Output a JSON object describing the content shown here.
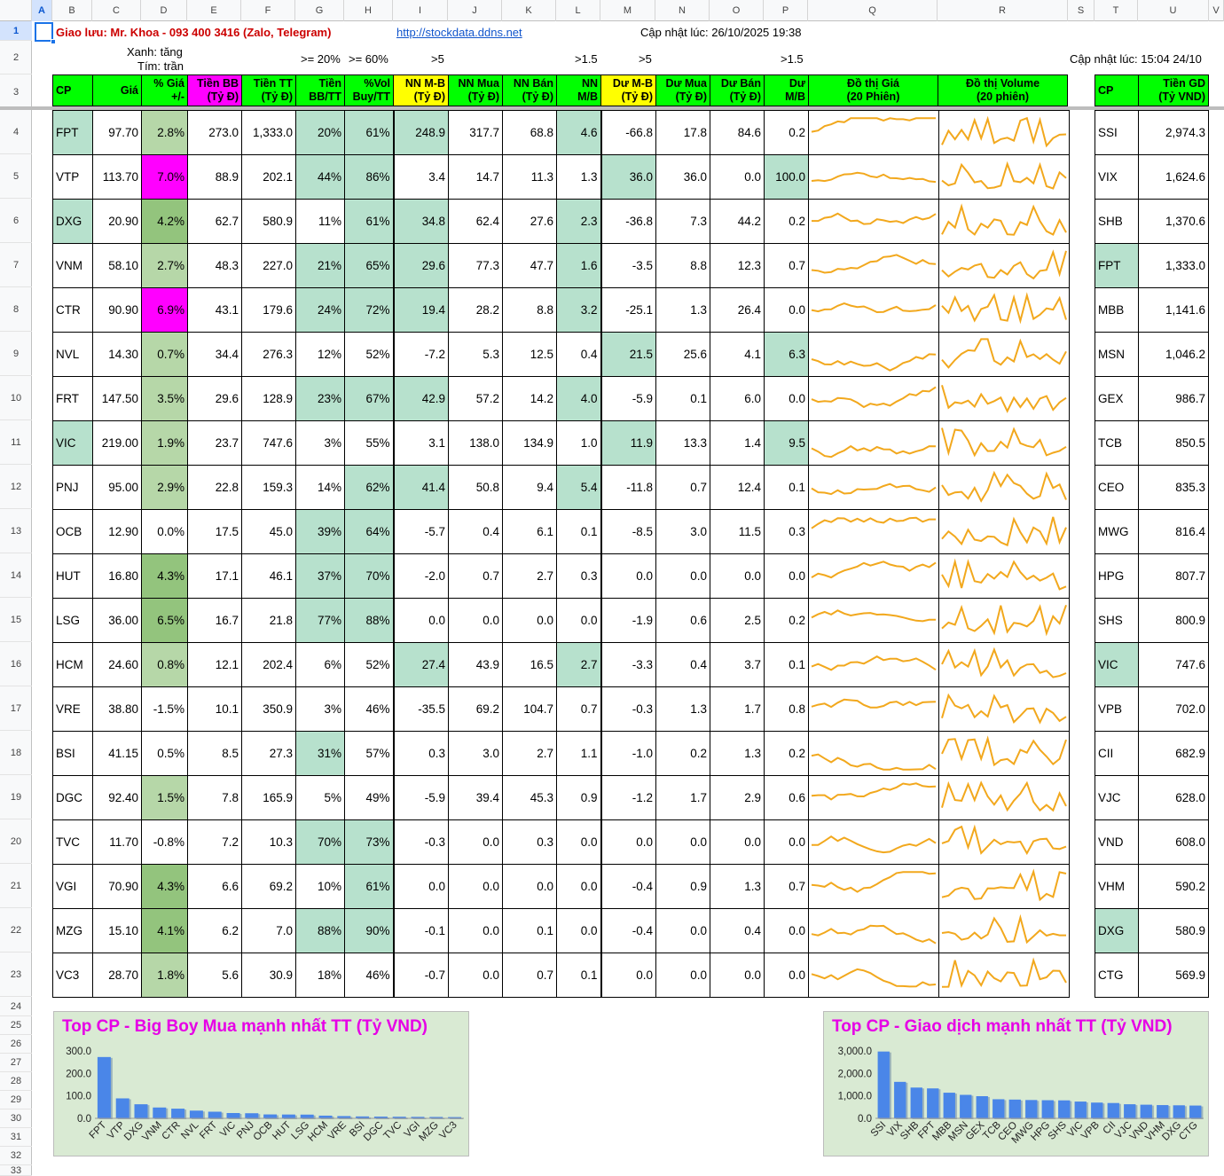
{
  "columns": [
    "A",
    "B",
    "C",
    "D",
    "E",
    "F",
    "G",
    "H",
    "I",
    "J",
    "K",
    "L",
    "M",
    "N",
    "O",
    "P",
    "Q",
    "R",
    "S",
    "T",
    "U",
    "V"
  ],
  "rows": [
    "1",
    "2",
    "3",
    "4",
    "5",
    "6",
    "7",
    "8",
    "9",
    "10",
    "11",
    "12",
    "13",
    "14",
    "15",
    "16",
    "17",
    "18",
    "19",
    "20",
    "21",
    "22",
    "23",
    "24",
    "25",
    "26",
    "27",
    "28",
    "29",
    "30",
    "31",
    "32",
    "33"
  ],
  "row1": {
    "contact": "Giao lưu: Mr. Khoa - 093 400 3416 (Zalo, Telegram)",
    "link": "http://stockdata.ddns.net",
    "updated": "Cập nhật lúc: 26/10/2025 19:38"
  },
  "row2": {
    "legend_green": "Xanh: tăng",
    "legend_purple": "Tím: trần",
    "crit_g": ">= 20%",
    "crit_h": ">= 60%",
    "crit_i": ">5",
    "crit_l": ">1.5",
    "crit_m": ">5",
    "crit_p": ">1.5",
    "updated_right": "Cập nhật lúc: 15:04 24/10"
  },
  "headers": {
    "cp": "CP",
    "gia": "Giá",
    "pct": "% Giá\n+/-",
    "tienbb": "Tiền BB\n(Tỷ Đ)",
    "tientt": "Tiền TT\n(Tỷ Đ)",
    "bbtt": "Tiền\nBB/TT",
    "vol": "%Vol\nBuy/TT",
    "nnmb": "NN M-B\n(Tỷ Đ)",
    "nnmua": "NN Mua\n(Tỷ Đ)",
    "nnban": "NN Bán\n(Tỷ Đ)",
    "nnmbr": "NN\nM/B",
    "dumb": "Dư M-B\n(Tỷ Đ)",
    "dumua": "Dư Mua\n(Tỷ Đ)",
    "duban": "Dư Bán\n(Tỷ Đ)",
    "dumbr": "Dư\nM/B",
    "dothigia": "Đồ thị Giá\n(20 Phiên)",
    "dothivol": "Đồ thị Volume\n(20 phiên)",
    "cp2": "CP",
    "tiengd": "Tiền GD\n(Tỷ VND)"
  },
  "colors": {
    "green": "#00ff00",
    "magenta": "#ff00ff",
    "yellow": "#ffff00",
    "cell_green": "#b7e1cd",
    "spark": "#f2a81d",
    "bar": "#4a86e8",
    "chart_bg": "#d9ead3",
    "title": "#e600e6"
  },
  "stocks": [
    {
      "cp": "FPT",
      "gia": "97.70",
      "pct": "2.8%",
      "tienbb": "273.0",
      "tientt": "1,333.0",
      "bbtt": "20%",
      "vol": "61%",
      "nnmb": "248.9",
      "nnmua": "317.7",
      "nnban": "68.8",
      "nnmbr": "4.6",
      "dumb": "-66.8",
      "dumua": "17.8",
      "duban": "84.6",
      "dumbr": "0.2"
    },
    {
      "cp": "VTP",
      "gia": "113.70",
      "pct": "7.0%",
      "tienbb": "88.9",
      "tientt": "202.1",
      "bbtt": "44%",
      "vol": "86%",
      "nnmb": "3.4",
      "nnmua": "14.7",
      "nnban": "11.3",
      "nnmbr": "1.3",
      "dumb": "36.0",
      "dumua": "36.0",
      "duban": "0.0",
      "dumbr": "100.0"
    },
    {
      "cp": "DXG",
      "gia": "20.90",
      "pct": "4.2%",
      "tienbb": "62.7",
      "tientt": "580.9",
      "bbtt": "11%",
      "vol": "61%",
      "nnmb": "34.8",
      "nnmua": "62.4",
      "nnban": "27.6",
      "nnmbr": "2.3",
      "dumb": "-36.8",
      "dumua": "7.3",
      "duban": "44.2",
      "dumbr": "0.2"
    },
    {
      "cp": "VNM",
      "gia": "58.10",
      "pct": "2.7%",
      "tienbb": "48.3",
      "tientt": "227.0",
      "bbtt": "21%",
      "vol": "65%",
      "nnmb": "29.6",
      "nnmua": "77.3",
      "nnban": "47.7",
      "nnmbr": "1.6",
      "dumb": "-3.5",
      "dumua": "8.8",
      "duban": "12.3",
      "dumbr": "0.7"
    },
    {
      "cp": "CTR",
      "gia": "90.90",
      "pct": "6.9%",
      "tienbb": "43.1",
      "tientt": "179.6",
      "bbtt": "24%",
      "vol": "72%",
      "nnmb": "19.4",
      "nnmua": "28.2",
      "nnban": "8.8",
      "nnmbr": "3.2",
      "dumb": "-25.1",
      "dumua": "1.3",
      "duban": "26.4",
      "dumbr": "0.0"
    },
    {
      "cp": "NVL",
      "gia": "14.30",
      "pct": "0.7%",
      "tienbb": "34.4",
      "tientt": "276.3",
      "bbtt": "12%",
      "vol": "52%",
      "nnmb": "-7.2",
      "nnmua": "5.3",
      "nnban": "12.5",
      "nnmbr": "0.4",
      "dumb": "21.5",
      "dumua": "25.6",
      "duban": "4.1",
      "dumbr": "6.3"
    },
    {
      "cp": "FRT",
      "gia": "147.50",
      "pct": "3.5%",
      "tienbb": "29.6",
      "tientt": "128.9",
      "bbtt": "23%",
      "vol": "67%",
      "nnmb": "42.9",
      "nnmua": "57.2",
      "nnban": "14.2",
      "nnmbr": "4.0",
      "dumb": "-5.9",
      "dumua": "0.1",
      "duban": "6.0",
      "dumbr": "0.0"
    },
    {
      "cp": "VIC",
      "gia": "219.00",
      "pct": "1.9%",
      "tienbb": "23.7",
      "tientt": "747.6",
      "bbtt": "3%",
      "vol": "55%",
      "nnmb": "3.1",
      "nnmua": "138.0",
      "nnban": "134.9",
      "nnmbr": "1.0",
      "dumb": "11.9",
      "dumua": "13.3",
      "duban": "1.4",
      "dumbr": "9.5"
    },
    {
      "cp": "PNJ",
      "gia": "95.00",
      "pct": "2.9%",
      "tienbb": "22.8",
      "tientt": "159.3",
      "bbtt": "14%",
      "vol": "62%",
      "nnmb": "41.4",
      "nnmua": "50.8",
      "nnban": "9.4",
      "nnmbr": "5.4",
      "dumb": "-11.8",
      "dumua": "0.7",
      "duban": "12.4",
      "dumbr": "0.1"
    },
    {
      "cp": "OCB",
      "gia": "12.90",
      "pct": "0.0%",
      "tienbb": "17.5",
      "tientt": "45.0",
      "bbtt": "39%",
      "vol": "64%",
      "nnmb": "-5.7",
      "nnmua": "0.4",
      "nnban": "6.1",
      "nnmbr": "0.1",
      "dumb": "-8.5",
      "dumua": "3.0",
      "duban": "11.5",
      "dumbr": "0.3"
    },
    {
      "cp": "HUT",
      "gia": "16.80",
      "pct": "4.3%",
      "tienbb": "17.1",
      "tientt": "46.1",
      "bbtt": "37%",
      "vol": "70%",
      "nnmb": "-2.0",
      "nnmua": "0.7",
      "nnban": "2.7",
      "nnmbr": "0.3",
      "dumb": "0.0",
      "dumua": "0.0",
      "duban": "0.0",
      "dumbr": "0.0"
    },
    {
      "cp": "LSG",
      "gia": "36.00",
      "pct": "6.5%",
      "tienbb": "16.7",
      "tientt": "21.8",
      "bbtt": "77%",
      "vol": "88%",
      "nnmb": "0.0",
      "nnmua": "0.0",
      "nnban": "0.0",
      "nnmbr": "0.0",
      "dumb": "-1.9",
      "dumua": "0.6",
      "duban": "2.5",
      "dumbr": "0.2"
    },
    {
      "cp": "HCM",
      "gia": "24.60",
      "pct": "0.8%",
      "tienbb": "12.1",
      "tientt": "202.4",
      "bbtt": "6%",
      "vol": "52%",
      "nnmb": "27.4",
      "nnmua": "43.9",
      "nnban": "16.5",
      "nnmbr": "2.7",
      "dumb": "-3.3",
      "dumua": "0.4",
      "duban": "3.7",
      "dumbr": "0.1"
    },
    {
      "cp": "VRE",
      "gia": "38.80",
      "pct": "-1.5%",
      "tienbb": "10.1",
      "tientt": "350.9",
      "bbtt": "3%",
      "vol": "46%",
      "nnmb": "-35.5",
      "nnmua": "69.2",
      "nnban": "104.7",
      "nnmbr": "0.7",
      "dumb": "-0.3",
      "dumua": "1.3",
      "duban": "1.7",
      "dumbr": "0.8"
    },
    {
      "cp": "BSI",
      "gia": "41.15",
      "pct": "0.5%",
      "tienbb": "8.5",
      "tientt": "27.3",
      "bbtt": "31%",
      "vol": "57%",
      "nnmb": "0.3",
      "nnmua": "3.0",
      "nnban": "2.7",
      "nnmbr": "1.1",
      "dumb": "-1.0",
      "dumua": "0.2",
      "duban": "1.3",
      "dumbr": "0.2"
    },
    {
      "cp": "DGC",
      "gia": "92.40",
      "pct": "1.5%",
      "tienbb": "7.8",
      "tientt": "165.9",
      "bbtt": "5%",
      "vol": "49%",
      "nnmb": "-5.9",
      "nnmua": "39.4",
      "nnban": "45.3",
      "nnmbr": "0.9",
      "dumb": "-1.2",
      "dumua": "1.7",
      "duban": "2.9",
      "dumbr": "0.6"
    },
    {
      "cp": "TVC",
      "gia": "11.70",
      "pct": "-0.8%",
      "tienbb": "7.2",
      "tientt": "10.3",
      "bbtt": "70%",
      "vol": "73%",
      "nnmb": "-0.3",
      "nnmua": "0.0",
      "nnban": "0.3",
      "nnmbr": "0.0",
      "dumb": "0.0",
      "dumua": "0.0",
      "duban": "0.0",
      "dumbr": "0.0"
    },
    {
      "cp": "VGI",
      "gia": "70.90",
      "pct": "4.3%",
      "tienbb": "6.6",
      "tientt": "69.2",
      "bbtt": "10%",
      "vol": "61%",
      "nnmb": "0.0",
      "nnmua": "0.0",
      "nnban": "0.0",
      "nnmbr": "0.0",
      "dumb": "-0.4",
      "dumua": "0.9",
      "duban": "1.3",
      "dumbr": "0.7"
    },
    {
      "cp": "MZG",
      "gia": "15.10",
      "pct": "4.1%",
      "tienbb": "6.2",
      "tientt": "7.0",
      "bbtt": "88%",
      "vol": "90%",
      "nnmb": "-0.1",
      "nnmua": "0.0",
      "nnban": "0.1",
      "nnmbr": "0.0",
      "dumb": "-0.4",
      "dumua": "0.0",
      "duban": "0.4",
      "dumbr": "0.0"
    },
    {
      "cp": "VC3",
      "gia": "28.70",
      "pct": "1.8%",
      "tienbb": "5.6",
      "tientt": "30.9",
      "bbtt": "18%",
      "vol": "46%",
      "nnmb": "-0.7",
      "nnmua": "0.0",
      "nnban": "0.7",
      "nnmbr": "0.1",
      "dumb": "0.0",
      "dumua": "0.0",
      "duban": "0.0",
      "dumbr": "0.0"
    }
  ],
  "top_gd": [
    {
      "cp": "SSI",
      "tien": "2,974.3"
    },
    {
      "cp": "VIX",
      "tien": "1,624.6"
    },
    {
      "cp": "SHB",
      "tien": "1,370.6"
    },
    {
      "cp": "FPT",
      "tien": "1,333.0"
    },
    {
      "cp": "MBB",
      "tien": "1,141.6"
    },
    {
      "cp": "MSN",
      "tien": "1,046.2"
    },
    {
      "cp": "GEX",
      "tien": "986.7"
    },
    {
      "cp": "TCB",
      "tien": "850.5"
    },
    {
      "cp": "CEO",
      "tien": "835.3"
    },
    {
      "cp": "MWG",
      "tien": "816.4"
    },
    {
      "cp": "HPG",
      "tien": "807.7"
    },
    {
      "cp": "SHS",
      "tien": "800.9"
    },
    {
      "cp": "VIC",
      "tien": "747.6"
    },
    {
      "cp": "VPB",
      "tien": "702.0"
    },
    {
      "cp": "CII",
      "tien": "682.9"
    },
    {
      "cp": "VJC",
      "tien": "628.0"
    },
    {
      "cp": "VND",
      "tien": "608.0"
    },
    {
      "cp": "VHM",
      "tien": "590.2"
    },
    {
      "cp": "DXG",
      "tien": "580.9"
    },
    {
      "cp": "CTG",
      "tien": "569.9"
    }
  ],
  "chart_data": [
    {
      "type": "bar",
      "title": "Top CP - Big Boy Mua mạnh nhất TT (Tỷ VND)",
      "categories": [
        "FPT",
        "VTP",
        "DXG",
        "VNM",
        "CTR",
        "NVL",
        "FRT",
        "VIC",
        "PNJ",
        "OCB",
        "HUT",
        "LSG",
        "HCM",
        "VRE",
        "BSI",
        "DGC",
        "TVC",
        "VGI",
        "MZG",
        "VC3"
      ],
      "values": [
        273.0,
        88.9,
        62.7,
        48.3,
        43.1,
        34.4,
        29.6,
        23.7,
        22.8,
        17.5,
        17.1,
        16.7,
        12.1,
        10.1,
        8.5,
        7.8,
        7.2,
        6.6,
        6.2,
        5.6
      ],
      "yticks": [
        "300.0",
        "200.0",
        "100.0",
        "0.0"
      ],
      "ylim": [
        0,
        300
      ],
      "legend": "none",
      "grid": false
    },
    {
      "type": "bar",
      "title": "Top CP - Giao dịch mạnh nhất TT (Tỷ VND)",
      "categories": [
        "SSI",
        "VIX",
        "SHB",
        "FPT",
        "MBB",
        "MSN",
        "GEX",
        "TCB",
        "CEO",
        "MWG",
        "HPG",
        "SHS",
        "VIC",
        "VPB",
        "CII",
        "VJC",
        "VND",
        "VHM",
        "DXG",
        "CTG"
      ],
      "values": [
        2974.3,
        1624.6,
        1370.6,
        1333.0,
        1141.6,
        1046.2,
        986.7,
        850.5,
        835.3,
        816.4,
        807.7,
        800.9,
        747.6,
        702.0,
        682.9,
        628.0,
        608.0,
        590.2,
        580.9,
        569.9
      ],
      "yticks": [
        "3,000.0",
        "2,000.0",
        "1,000.0",
        "0.0"
      ],
      "ylim": [
        0,
        3000
      ],
      "legend": "none",
      "grid": false
    }
  ]
}
